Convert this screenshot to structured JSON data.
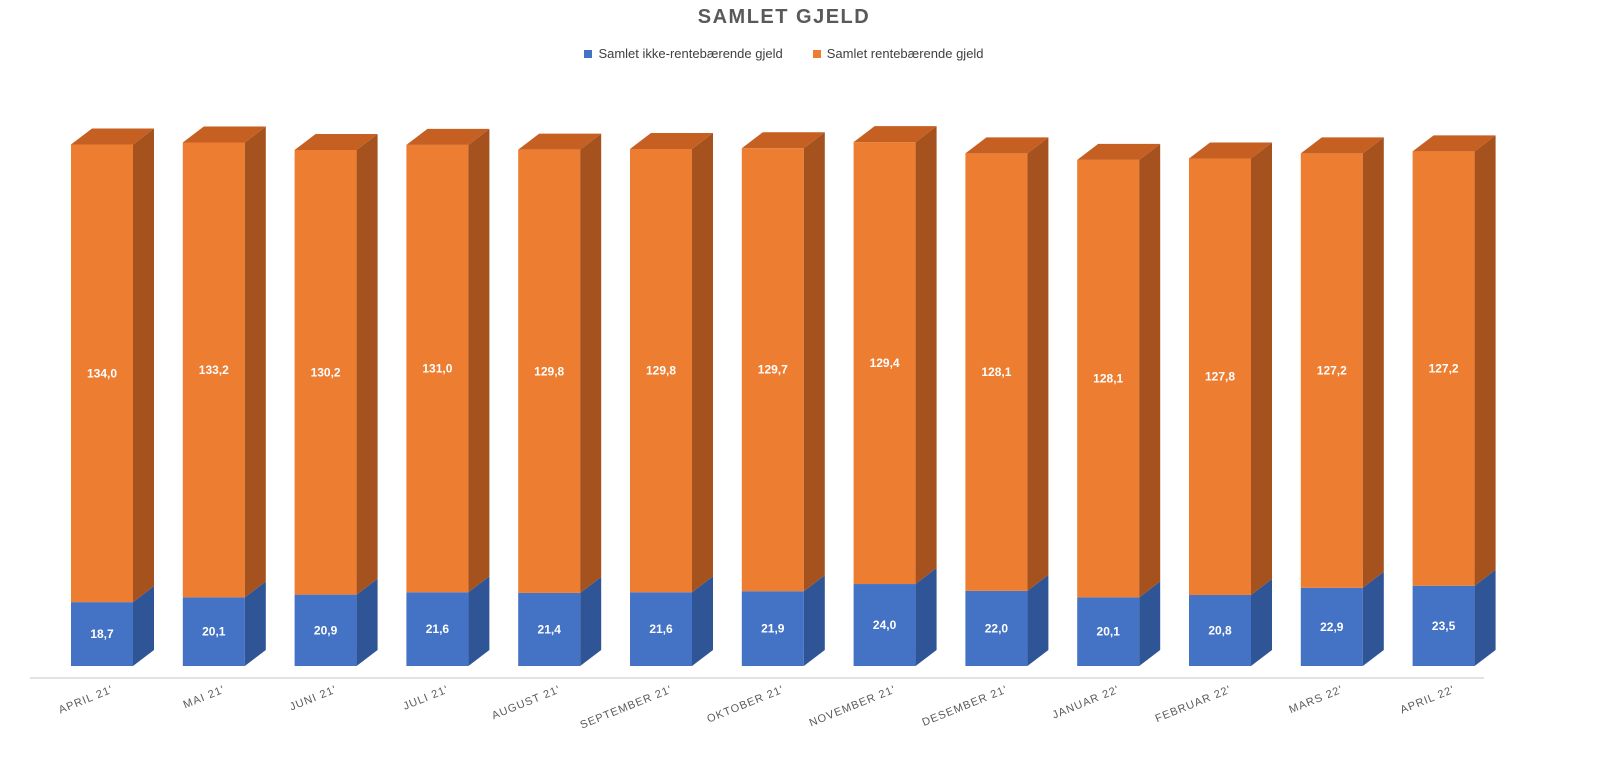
{
  "chart_data": {
    "type": "bar",
    "stacked": true,
    "three_d": true,
    "title": "SAMLET GJELD",
    "legend_position": "top",
    "grid": false,
    "categories": [
      "APRIL 21'",
      "MAI 21'",
      "JUNI 21'",
      "JULI 21'",
      "AUGUST 21'",
      "SEPTEMBER 21'",
      "OKTOBER 21'",
      "NOVEMBER 21'",
      "DESEMBER 21'",
      "JANUAR 22'",
      "FEBRUAR 22'",
      "MARS 22'",
      "APRIL 22'"
    ],
    "series": [
      {
        "name": "Samlet ikke-rentebærende gjeld",
        "color": "#4472C4",
        "values": [
          18.7,
          20.1,
          20.9,
          21.6,
          21.4,
          21.6,
          21.9,
          24.0,
          22.0,
          20.1,
          20.8,
          22.9,
          23.5
        ],
        "labels": [
          "18,7",
          "20,1",
          "20,9",
          "21,6",
          "21,4",
          "21,6",
          "21,9",
          "24,0",
          "22,0",
          "20,1",
          "20,8",
          "22,9",
          "23,5"
        ]
      },
      {
        "name": "Samlet rentebærende gjeld",
        "color": "#ED7D31",
        "values": [
          134.0,
          133.2,
          130.2,
          131.0,
          129.8,
          129.8,
          129.7,
          129.4,
          128.1,
          128.1,
          127.8,
          127.2,
          127.2
        ],
        "labels": [
          "134,0",
          "133,2",
          "130,2",
          "131,0",
          "129,8",
          "129,8",
          "129,7",
          "129,4",
          "128,1",
          "128,1",
          "127,8",
          "127,2",
          "127,2"
        ]
      }
    ],
    "colors": {
      "blue_side": "#2F5597",
      "blue_top": "#5B85D1",
      "orange_side": "#A5521E",
      "orange_top": "#C65F22",
      "label_text": "#ffffff",
      "axis_text": "#595959",
      "axis_line": "#D9D9D9"
    }
  }
}
